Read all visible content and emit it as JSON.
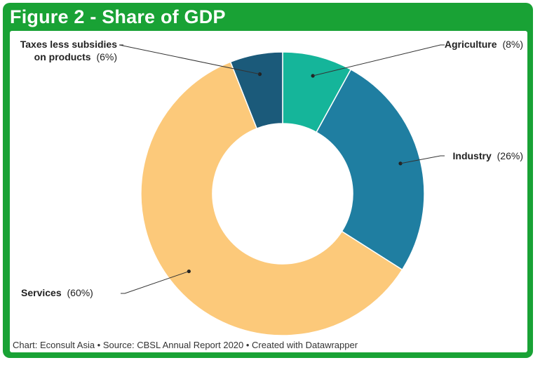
{
  "figure": {
    "title": "Figure 2 - Share of GDP",
    "footer": "Chart: Econsult Asia • Source: CBSL Annual Report 2020 • Created with Datawrapper"
  },
  "colors": {
    "frame": "#19a235",
    "agriculture": "#15b59a",
    "industry": "#1f7ea1",
    "services": "#fcc97a",
    "taxes": "#1b5a7a"
  },
  "chart_data": {
    "type": "pie",
    "style": "donut",
    "title": "Figure 2 - Share of GDP",
    "slices": [
      {
        "name": "Agriculture",
        "value": 8,
        "pct_label": "(8%)",
        "color": "#15b59a"
      },
      {
        "name": "Industry",
        "value": 26,
        "pct_label": "(26%)",
        "color": "#1f7ea1"
      },
      {
        "name": "Services",
        "value": 60,
        "pct_label": "(60%)",
        "color": "#fcc97a"
      },
      {
        "name": "Taxes less subsidies on products",
        "name_line1": "Taxes less subsidies",
        "name_line2": "on products",
        "value": 6,
        "pct_label": "(6%)",
        "color": "#1b5a7a"
      }
    ]
  }
}
